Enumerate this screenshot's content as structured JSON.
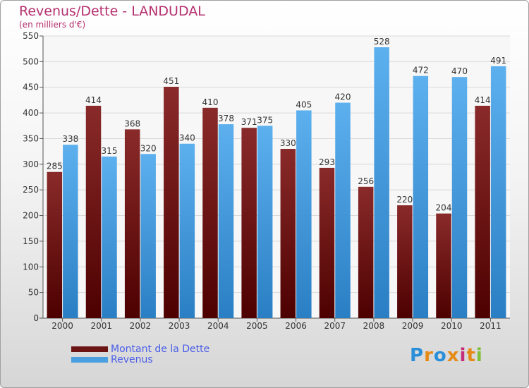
{
  "title": "Revenus/Dette - LANDUDAL",
  "subtitle": "(en milliers d'€)",
  "legend": [
    {
      "label": "Montant de la Dette",
      "color": "#6b1414"
    },
    {
      "label": "Revenus",
      "color": "#4a9fe0"
    }
  ],
  "logo": {
    "text": "Proxiti",
    "colors": [
      "#2a8fd8",
      "#e58a17",
      "#c42f7a",
      "#7fbf3a"
    ]
  },
  "chart_data": {
    "type": "bar",
    "title": "Revenus/Dette - LANDUDAL",
    "ylabel": "(en milliers d'€)",
    "xlabel": "",
    "ylim": [
      0,
      550
    ],
    "ytick_step": 50,
    "grid": true,
    "categories": [
      "2000",
      "2001",
      "2002",
      "2003",
      "2004",
      "2005",
      "2006",
      "2007",
      "2008",
      "2009",
      "2010",
      "2011"
    ],
    "series": [
      {
        "name": "Montant de la Dette",
        "color_top": "#8a2a2a",
        "color_bottom": "#4d0000",
        "values": [
          285,
          414,
          368,
          451,
          410,
          371,
          330,
          293,
          256,
          220,
          204,
          414
        ]
      },
      {
        "name": "Revenus",
        "color_top": "#5db0ee",
        "color_bottom": "#2a7fc4",
        "values": [
          338,
          315,
          320,
          340,
          378,
          375,
          405,
          420,
          528,
          472,
          470,
          491
        ]
      }
    ]
  }
}
